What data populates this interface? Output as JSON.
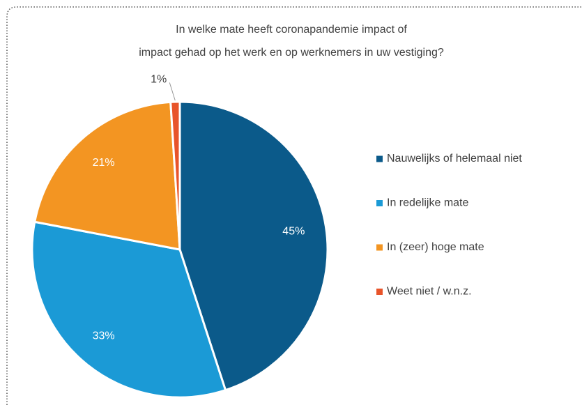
{
  "chart_data": {
    "type": "pie",
    "title": [
      "In welke mate heeft coronapandemie impact of",
      "impact gehad op het werk en op werknemers in uw vestiging?"
    ],
    "categories": [
      "Nauwelijks of helemaal niet",
      "In redelijke mate",
      "In (zeer) hoge mate",
      "Weet niet / w.n.z."
    ],
    "values": [
      45,
      33,
      21,
      1
    ],
    "colors": [
      "#0b5a8a",
      "#1b9ad6",
      "#f39522",
      "#e8542a"
    ]
  }
}
